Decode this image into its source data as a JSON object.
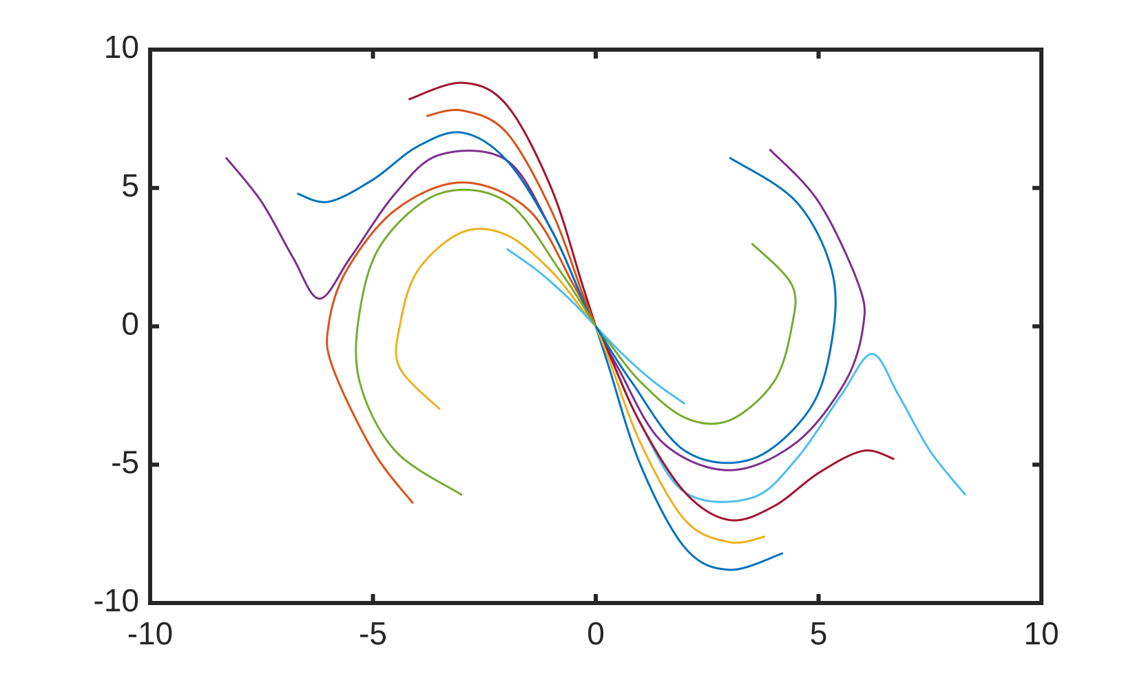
{
  "chart_data": {
    "type": "line",
    "xlim": [
      -10,
      10
    ],
    "ylim": [
      -10,
      10
    ],
    "xticks": [
      -10,
      -5,
      0,
      5,
      10
    ],
    "yticks": [
      -10,
      -5,
      0,
      5,
      10
    ],
    "grid": false,
    "series": [
      {
        "color": "#7E2F8E",
        "x": [
          -8.3,
          -7.5,
          -6.8,
          -6.2,
          -5.5,
          -4.5,
          -3.5,
          -2,
          -1,
          -0.3,
          0
        ],
        "values": [
          6.1,
          4.5,
          2.5,
          1,
          2.5,
          4.8,
          6.2,
          6,
          3.5,
          1,
          0
        ]
      },
      {
        "color": "#D95319",
        "x": [
          -4.1,
          -5,
          -5.9,
          -6,
          -5.6,
          -4.5,
          -3,
          -1.5,
          -0.5,
          0
        ],
        "values": [
          -6.4,
          -4.5,
          -1.5,
          0,
          2,
          4.2,
          5.2,
          4.2,
          1.5,
          0
        ]
      },
      {
        "color": "#EDB120",
        "x": [
          -3.5,
          -4.4,
          -4.4,
          -4,
          -3,
          -2,
          -1,
          -0.3,
          0
        ],
        "values": [
          -3,
          -1.5,
          0,
          2,
          3.4,
          3.3,
          2,
          0.6,
          0
        ]
      },
      {
        "color": "#0072BD",
        "x": [
          -6.7,
          -6,
          -5,
          -4,
          -3,
          -2,
          -1,
          -0.3,
          0
        ],
        "values": [
          4.8,
          4.5,
          5.3,
          6.5,
          7,
          6,
          3.5,
          1,
          0
        ]
      },
      {
        "color": "#A2142F",
        "x": [
          -4.2,
          -3,
          -2,
          -1,
          -0.3,
          0
        ],
        "values": [
          8.2,
          8.8,
          8,
          5,
          1.5,
          0
        ]
      },
      {
        "color": "#D95319",
        "x": [
          -3.8,
          -3,
          -2,
          -1,
          -0.3,
          0
        ],
        "values": [
          7.6,
          7.8,
          7,
          4.2,
          1.2,
          0
        ]
      },
      {
        "color": "#4DBEEE",
        "x": [
          -2,
          -1.3,
          -0.6,
          0
        ],
        "values": [
          2.8,
          2,
          1,
          0
        ]
      },
      {
        "color": "#77AC30",
        "x": [
          -3,
          -4.5,
          -5.3,
          -5.3,
          -4.8,
          -3.5,
          -2,
          -0.8,
          0
        ],
        "values": [
          -6.1,
          -4.5,
          -2,
          0.5,
          3,
          4.8,
          4.5,
          2,
          0
        ]
      },
      {
        "color": "#4DBEEE",
        "x": [
          8.3,
          7.5,
          6.8,
          6.2,
          5.5,
          4.5,
          3.5,
          2,
          1,
          0.3,
          0
        ],
        "values": [
          -6.1,
          -4.5,
          -2.5,
          -1,
          -2.5,
          -4.8,
          -6.2,
          -6,
          -3.5,
          -1,
          0
        ]
      },
      {
        "color": "#7E2F8E",
        "x": [
          3.9,
          5,
          5.9,
          6,
          5.6,
          4.5,
          3,
          1.5,
          0.5,
          0
        ],
        "values": [
          6.4,
          4.5,
          1.5,
          0,
          -2,
          -4.2,
          -5.2,
          -4.2,
          -1.5,
          0
        ]
      },
      {
        "color": "#77AC30",
        "x": [
          3.5,
          4.4,
          4.4,
          4,
          3,
          2,
          1,
          0.3,
          0
        ],
        "values": [
          3,
          1.5,
          0,
          -2,
          -3.4,
          -3.3,
          -2,
          -0.6,
          0
        ]
      },
      {
        "color": "#A2142F",
        "x": [
          6.7,
          6,
          5,
          4,
          3,
          2,
          1,
          0.3,
          0
        ],
        "values": [
          -4.8,
          -4.5,
          -5.3,
          -6.5,
          -7,
          -6,
          -3.5,
          -1,
          0
        ]
      },
      {
        "color": "#0072BD",
        "x": [
          4.2,
          3,
          2,
          1,
          0.3,
          0
        ],
        "values": [
          -8.2,
          -8.8,
          -8,
          -5,
          -1.5,
          0
        ]
      },
      {
        "color": "#EDB120",
        "x": [
          3.8,
          3,
          2,
          1,
          0.3,
          0
        ],
        "values": [
          -7.6,
          -7.8,
          -7,
          -4.2,
          -1.2,
          0
        ]
      },
      {
        "color": "#4DBEEE",
        "x": [
          2,
          1.3,
          0.6,
          0
        ],
        "values": [
          -2.8,
          -2,
          -1,
          0
        ]
      },
      {
        "color": "#0072BD",
        "x": [
          3,
          4.5,
          5.3,
          5.3,
          4.8,
          3.5,
          2,
          0.8,
          0
        ],
        "values": [
          6.1,
          4.5,
          2,
          -0.5,
          -3,
          -4.8,
          -4.5,
          -2,
          0
        ]
      }
    ]
  }
}
